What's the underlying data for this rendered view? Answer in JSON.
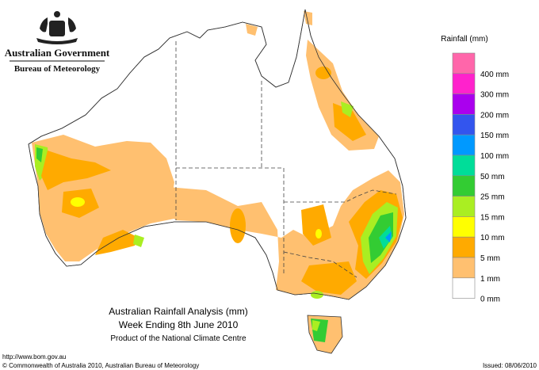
{
  "header": {
    "government": "Australian Government",
    "bureau": "Bureau of Meteorology"
  },
  "legend": {
    "title": "Rainfall (mm)",
    "items": [
      {
        "label": "400 mm",
        "color": "#ff66aa"
      },
      {
        "label": "300 mm",
        "color": "#ff22cc"
      },
      {
        "label": "200 mm",
        "color": "#aa00ee"
      },
      {
        "label": "150 mm",
        "color": "#3355ee"
      },
      {
        "label": "100 mm",
        "color": "#0099ff"
      },
      {
        "label": "50 mm",
        "color": "#00dd99"
      },
      {
        "label": "25 mm",
        "color": "#33cc33"
      },
      {
        "label": "15 mm",
        "color": "#aaee22"
      },
      {
        "label": "10 mm",
        "color": "#ffff00"
      },
      {
        "label": "5 mm",
        "color": "#ffaa00"
      },
      {
        "label": "1 mm",
        "color": "#ffc070"
      },
      {
        "label": "0 mm",
        "color": "#ffffff"
      }
    ]
  },
  "map": {
    "title": "Australian Rainfall Analysis (mm)",
    "subtitle": "Week Ending 8th June 2010",
    "credit": "Product of the National Climate Centre"
  },
  "footer": {
    "url": "http://www.bom.gov.au",
    "copyright": "© Commonwealth of Australia 2010, Australian Bureau of Meteorology",
    "issued": "Issued: 08/06/2010"
  }
}
